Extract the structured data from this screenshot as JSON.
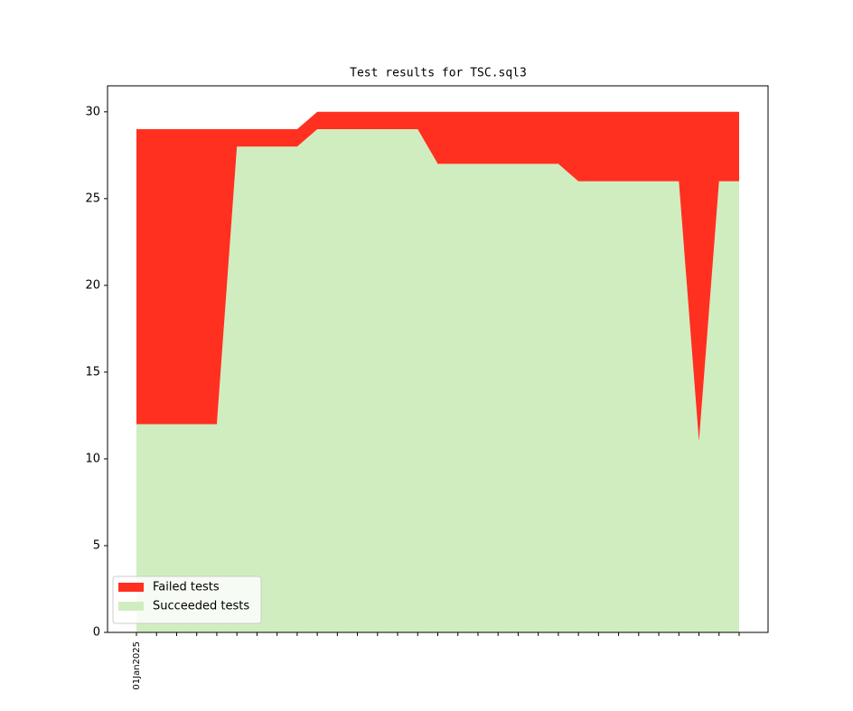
{
  "chart_data": {
    "type": "stacked-area",
    "title": "Test results for TSC.sql3",
    "categories": [
      "01Jan2025",
      null,
      null,
      null,
      null,
      null,
      null,
      null,
      null,
      null,
      null,
      null,
      null,
      null,
      null,
      null,
      null,
      null,
      null,
      null,
      null,
      null,
      null,
      null,
      null,
      null,
      null,
      null,
      null,
      null,
      null
    ],
    "series": [
      {
        "name": "Failed tests",
        "color": "#ff3020",
        "values": [
          17,
          17,
          17,
          17,
          17,
          1,
          1,
          1,
          1,
          1,
          1,
          1,
          1,
          1,
          1,
          3,
          3,
          3,
          3,
          3,
          3,
          3,
          4,
          4,
          4,
          4,
          4,
          4,
          19,
          4,
          4
        ]
      },
      {
        "name": "Succeeded tests",
        "color": "#d0edc0",
        "values": [
          12,
          12,
          12,
          12,
          12,
          28,
          28,
          28,
          28,
          29,
          29,
          29,
          29,
          29,
          29,
          27,
          27,
          27,
          27,
          27,
          27,
          27,
          26,
          26,
          26,
          26,
          26,
          26,
          11,
          26,
          26
        ]
      }
    ],
    "ylim": [
      0,
      31.5
    ],
    "yticks": [
      0,
      5,
      10,
      15,
      20,
      25,
      30
    ],
    "grid": false,
    "legend": "lower left"
  }
}
